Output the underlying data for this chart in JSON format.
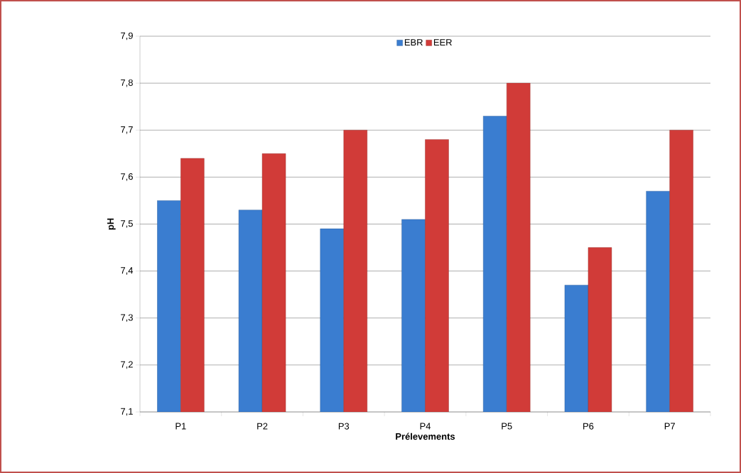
{
  "chart_data": {
    "type": "bar",
    "xlabel": "Prélevements",
    "ylabel": "pH",
    "categories": [
      "P1",
      "P2",
      "P3",
      "P4",
      "P5",
      "P6",
      "P7"
    ],
    "series": [
      {
        "name": "EBR",
        "color": "#3a7dd0",
        "values": [
          7.55,
          7.53,
          7.49,
          7.51,
          7.73,
          7.37,
          7.57
        ]
      },
      {
        "name": "EER",
        "color": "#d13b38",
        "values": [
          7.64,
          7.65,
          7.7,
          7.68,
          7.8,
          7.45,
          7.7
        ]
      }
    ],
    "ylim": [
      7.1,
      7.9
    ],
    "yticks": [
      {
        "value": 7.1,
        "label": "7,1"
      },
      {
        "value": 7.2,
        "label": "7,2"
      },
      {
        "value": 7.3,
        "label": "7,3"
      },
      {
        "value": 7.4,
        "label": "7,4"
      },
      {
        "value": 7.5,
        "label": "7,5"
      },
      {
        "value": 7.6,
        "label": "7,6"
      },
      {
        "value": 7.7,
        "label": "7,7"
      },
      {
        "value": 7.8,
        "label": "7,8"
      },
      {
        "value": 7.9,
        "label": "7,9"
      }
    ],
    "grid": "y",
    "legend": "top"
  }
}
